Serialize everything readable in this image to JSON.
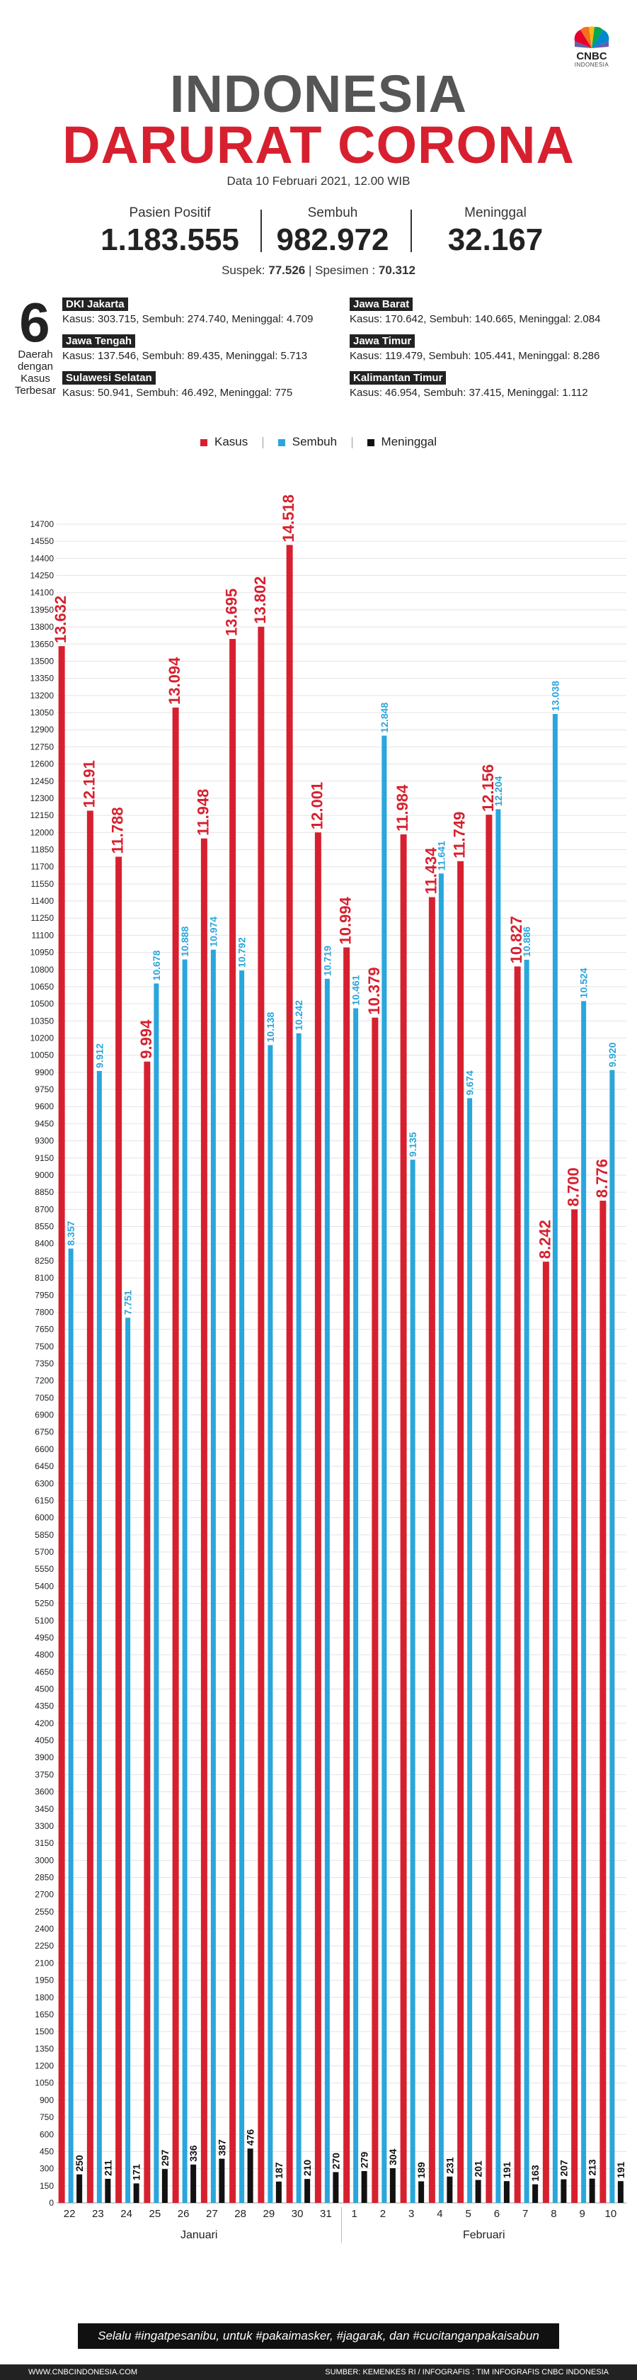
{
  "brand": {
    "name": "CNBC",
    "sub": "INDONESIA"
  },
  "title_line1": "INDONESIA",
  "title_line2": "DARURAT CORONA",
  "date": "Data 10 Februari 2021, 12.00 WIB",
  "stats": {
    "positif": {
      "label": "Pasien Positif",
      "value": "1.183.555"
    },
    "sembuh": {
      "label": "Sembuh",
      "value": "982.972"
    },
    "meninggal": {
      "label": "Meninggal",
      "value": "32.167"
    }
  },
  "suspek": {
    "label": "Suspek:",
    "value": "77.526",
    "sep": "|",
    "spesimen_label": "Spesimen :",
    "spesimen_value": "70.312"
  },
  "top_regions": {
    "count": "6",
    "caption": "Daerah dengan Kasus Terbesar",
    "items": [
      {
        "name": "DKI Jakarta",
        "detail": "Kasus: 303.715, Sembuh: 274.740, Meninggal: 4.709"
      },
      {
        "name": "Jawa Barat",
        "detail": "Kasus: 170.642, Sembuh: 140.665, Meninggal: 2.084"
      },
      {
        "name": "Jawa Tengah",
        "detail": "Kasus: 137.546, Sembuh: 89.435, Meninggal: 5.713"
      },
      {
        "name": "Jawa Timur",
        "detail": "Kasus: 119.479, Sembuh: 105.441, Meninggal: 8.286"
      },
      {
        "name": "Sulawesi Selatan",
        "detail": "Kasus: 50.941, Sembuh: 46.492, Meninggal: 775"
      },
      {
        "name": "Kalimantan Timur",
        "detail": "Kasus: 46.954, Sembuh: 37.415, Meninggal: 1.112"
      }
    ]
  },
  "legend": [
    {
      "label": "Kasus",
      "color": "#d7202f"
    },
    {
      "label": "Sembuh",
      "color": "#2aa6dc"
    },
    {
      "label": "Meninggal",
      "color": "#111111"
    }
  ],
  "chart_data": {
    "type": "bar",
    "categories": [
      "22",
      "23",
      "24",
      "25",
      "26",
      "27",
      "28",
      "29",
      "30",
      "31",
      "1",
      "2",
      "3",
      "4",
      "5",
      "6",
      "7",
      "8",
      "9",
      "10"
    ],
    "month_groups": [
      {
        "label": "Januari",
        "from": 0,
        "to": 9
      },
      {
        "label": "Februari",
        "from": 10,
        "to": 19
      }
    ],
    "ylim": [
      0,
      14700
    ],
    "ytick_step": 150,
    "series": [
      {
        "name": "Kasus",
        "color": "#d7202f",
        "values": [
          13632,
          12191,
          11788,
          9994,
          13094,
          11948,
          13695,
          13802,
          14518,
          12001,
          10994,
          10379,
          11984,
          11434,
          11749,
          12156,
          10827,
          8242,
          8700,
          8776
        ]
      },
      {
        "name": "Sembuh",
        "color": "#2aa6dc",
        "values": [
          8357,
          9912,
          7751,
          10678,
          10888,
          10974,
          10792,
          10138,
          10242,
          10719,
          10461,
          12848,
          9135,
          11641,
          9674,
          12204,
          10886,
          13038,
          10524,
          9920
        ]
      },
      {
        "name": "Meninggal",
        "color": "#111111",
        "values": [
          250,
          211,
          171,
          297,
          336,
          387,
          476,
          187,
          210,
          270,
          279,
          304,
          189,
          231,
          201,
          191,
          163,
          207,
          213,
          191
        ]
      }
    ]
  },
  "footer": {
    "slogan": "Selalu #ingatpesanibu, untuk #pakaimasker, #jagarak, dan #cucitanganpakaisabun",
    "site": "WWW.CNBCINDONESIA.COM",
    "source": "SUMBER: KEMENKES RI / INFOGRAFIS : TIM INFOGRAFIS CNBC INDONESIA"
  }
}
